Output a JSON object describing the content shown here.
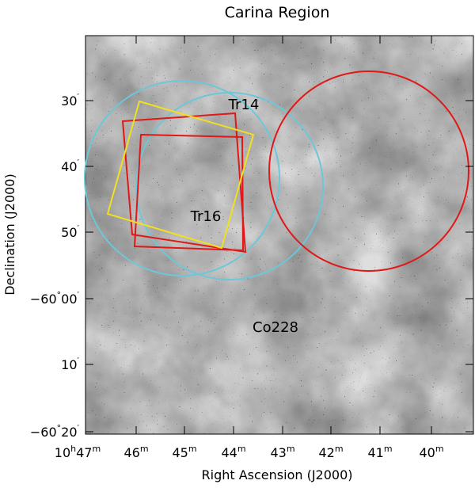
{
  "title": "Carina Region",
  "x_axis": {
    "label": "Right Ascension (J2000)",
    "ticks": [
      [
        "10",
        "h",
        "47",
        "m"
      ],
      [
        "46",
        "m"
      ],
      [
        "45",
        "m"
      ],
      [
        "44",
        "m"
      ],
      [
        "43",
        "m"
      ],
      [
        "42",
        "m"
      ],
      [
        "41",
        "m"
      ],
      [
        "40",
        "m"
      ]
    ]
  },
  "y_axis": {
    "label": "Declination (J2000)",
    "ticks": [
      [
        "30",
        "′"
      ],
      [
        "40",
        "′"
      ],
      [
        "50",
        "′"
      ],
      [
        "−60",
        "°",
        "00",
        "′"
      ],
      [
        "10",
        "′"
      ],
      [
        "−60",
        "°",
        "20",
        "′"
      ]
    ]
  },
  "annotations": [
    "Tr14",
    "Tr16",
    "Co228"
  ]
}
